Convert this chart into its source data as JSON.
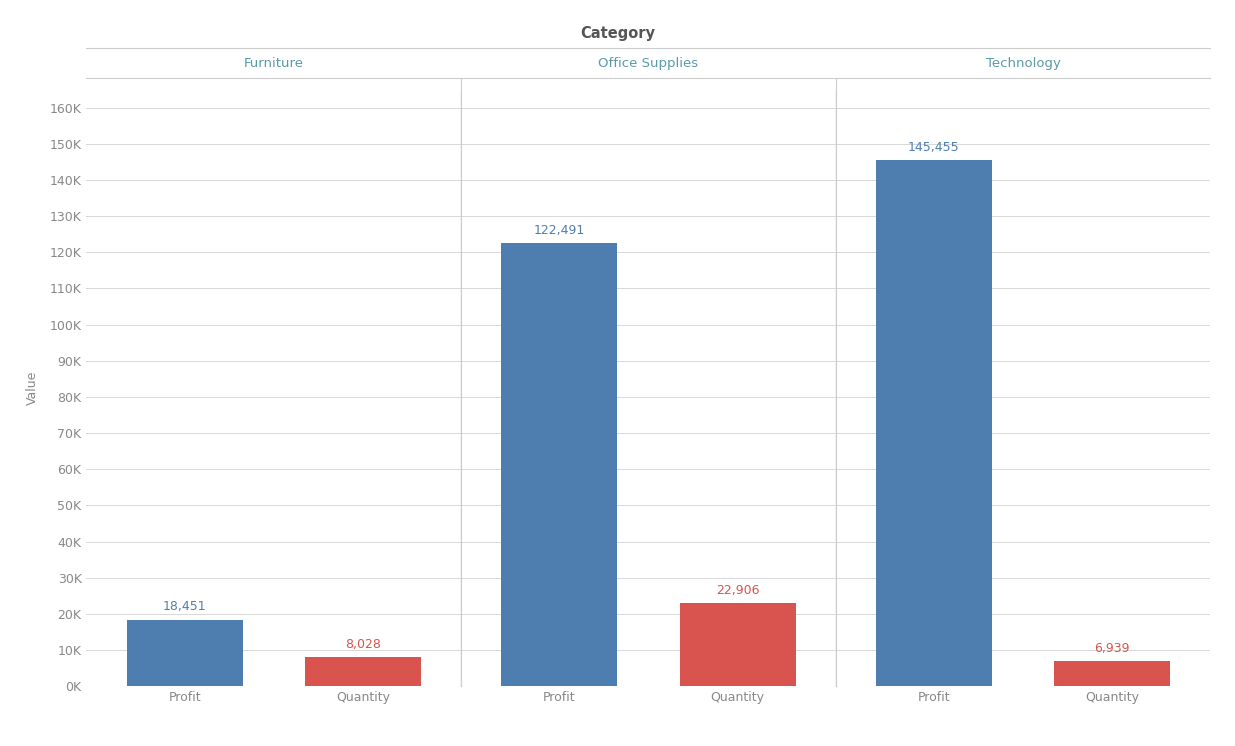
{
  "title": "Category",
  "ylabel": "Value",
  "categories": [
    "Furniture",
    "Office Supplies",
    "Technology"
  ],
  "measures": [
    "Profit",
    "Quantity"
  ],
  "values": {
    "Furniture": {
      "Profit": 18451,
      "Quantity": 8028
    },
    "Office Supplies": {
      "Profit": 122491,
      "Quantity": 22906
    },
    "Technology": {
      "Profit": 145455,
      "Quantity": 6939
    }
  },
  "bar_colors": {
    "Profit": "#4e7eb0",
    "Quantity": "#d9534f"
  },
  "label_colors": {
    "Profit": "#4e7eb0",
    "Quantity": "#d9534f"
  },
  "category_label_color": "#5a9aaa",
  "title_color": "#555555",
  "axis_label_color": "#888888",
  "tick_label_color": "#888888",
  "background_color": "#ffffff",
  "grid_color": "#d8d8d8",
  "divider_color": "#cccccc",
  "yticks": [
    0,
    10000,
    20000,
    30000,
    40000,
    50000,
    60000,
    70000,
    80000,
    90000,
    100000,
    110000,
    120000,
    130000,
    140000,
    150000,
    160000
  ],
  "ylim": [
    0,
    165000
  ],
  "figsize": [
    12.35,
    7.46
  ],
  "dpi": 100,
  "title_fontsize": 10.5,
  "category_label_fontsize": 9.5,
  "axis_label_fontsize": 9,
  "tick_label_fontsize": 9,
  "bar_label_fontsize": 9
}
